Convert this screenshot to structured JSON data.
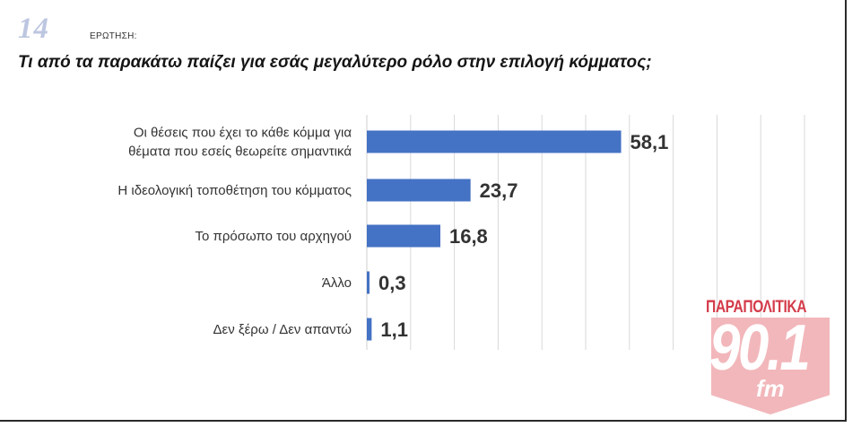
{
  "header": {
    "question_number": "14",
    "question_label": "ΕΡΩΤΗΣΗ:",
    "question_text": "Τι από τα παρακάτω παίζει για εσάς μεγαλύτερο ρόλο στην επιλογή κόμματος;"
  },
  "logo": {
    "top_text": "ΠΑΡΑΠΟΛΙΤΙΚΑ",
    "number": "90.1",
    "suffix": "fm"
  },
  "colors": {
    "bar": "#4472c4",
    "grid": "#d9d9d9",
    "label_text": "#333333",
    "value_text": "#333333"
  },
  "chart_data": {
    "type": "bar",
    "orientation": "horizontal",
    "title": "Τι από τα παρακάτω παίζει για εσάς μεγαλύτερο ρόλο στην επιλογή κόμματος;",
    "xlabel": "",
    "ylabel": "",
    "xlim": [
      0,
      100
    ],
    "grid": true,
    "legend": "none",
    "categories": [
      [
        "Οι θέσεις που έχει το κάθε κόμμα για",
        "θέματα που εσείς θεωρείτε σημαντικά"
      ],
      [
        "Η ιδεολογική τοποθέτηση του κόμματος"
      ],
      [
        "Το πρόσωπο του αρχηγού"
      ],
      [
        "Άλλο"
      ],
      [
        "Δεν ξέρω / Δεν απαντώ"
      ]
    ],
    "values": [
      58.1,
      23.7,
      16.8,
      0.3,
      1.1
    ],
    "value_labels": [
      "58,1",
      "23,7",
      "16,8",
      "0,3",
      "1,1"
    ]
  }
}
